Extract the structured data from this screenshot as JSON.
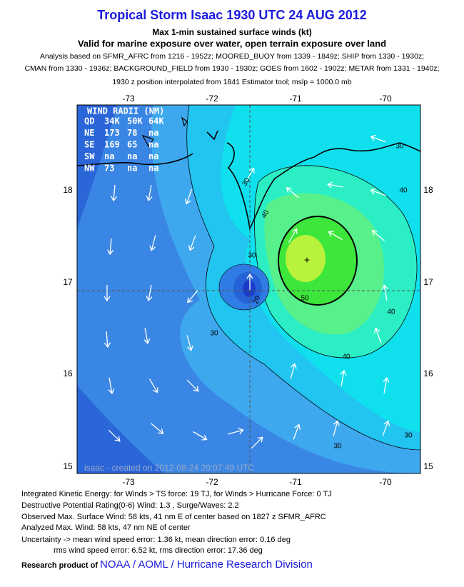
{
  "header": {
    "title": "Tropical Storm Isaac 1930 UTC 24 AUG 2012",
    "subtitle": "Max 1-min sustained surface winds (kt)",
    "valid": "Valid for marine exposure over water, open terrain exposure over land",
    "analysis": [
      "Analysis based on SFMR_AFRC from 1216 - 1952z; MOORED_BUOY from 1339 - 1849z; SHIP from 1330 - 1930z;",
      "CMAN from 1330 - 1936z; BACKGROUND_FIELD from 1930 - 1930z; GOES from 1602 - 1902z; METAR from 1331 - 1940z;"
    ],
    "position": "1930 z position interpolated from 1841 Estimator tool; mslp = 1000.0 mb"
  },
  "map": {
    "lon_labels": [
      "-73",
      "-72",
      "-71",
      "-70"
    ],
    "lat_labels": [
      "18",
      "17",
      "16",
      "15"
    ],
    "wind_radii": {
      "title": "WIND RADII (NM)",
      "rows": [
        [
          "QD",
          "34K",
          "50K",
          "64K"
        ],
        [
          "NE",
          "173",
          "78",
          "na"
        ],
        [
          "SE",
          "169",
          "65",
          "na"
        ],
        [
          "SW",
          "na",
          "na",
          "na"
        ],
        [
          "NW",
          "73",
          "na",
          "na"
        ]
      ]
    },
    "contour_labels": [
      "30",
      "40",
      "30",
      "20",
      "50",
      "40",
      "40",
      "30",
      "30",
      "30",
      "40",
      "30"
    ],
    "watermark": "isaac - created on 2012-08-24 20:07:49 UTC"
  },
  "footer": {
    "lines": [
      "Integrated Kinetic Energy: for Winds > TS force: 19 TJ, for Winds > Hurricane Force: 0 TJ",
      "Destructive Potential Rating(0-6)  Wind: 1.3 , Surge/Waves: 2.2",
      "Observed Max. Surface Wind: 58 kts, 41 nm E of center based on 1827 z SFMR_AFRC",
      "Analyzed Max. Wind: 58 kts, 47 nm  NE of center",
      "Uncertainty -> mean wind speed error: 1.36 kt, mean direction error: 0.16 deg",
      "rms wind speed error: 6.52 kt, rms direction error: 17.36 deg"
    ],
    "research": "Research product of",
    "org": "NOAA / AOML / Hurricane Research Division"
  }
}
